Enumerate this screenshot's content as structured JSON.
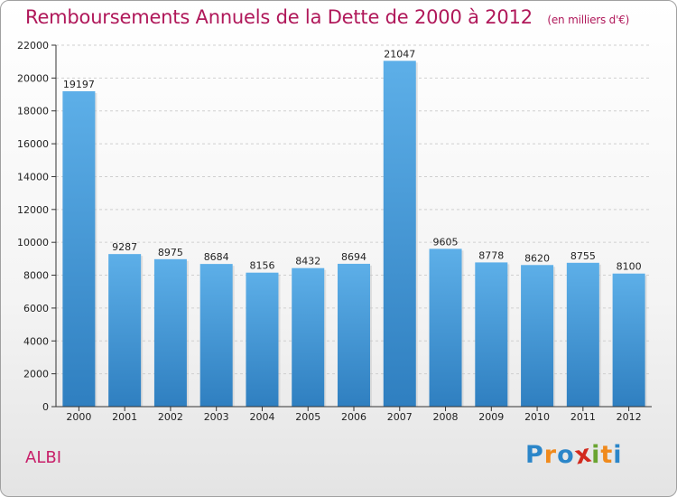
{
  "title": "Remboursements Annuels de la Dette de 2000 à 2012",
  "subtitle": "(en milliers d'€)",
  "location": "ALBI",
  "brand": {
    "text": "Proxiti",
    "letters": [
      {
        "ch": "P",
        "color": "#2b86c9"
      },
      {
        "ch": "r",
        "color": "#f08a1c"
      },
      {
        "ch": "o",
        "color": "#2b86c9"
      },
      {
        "ch": "x",
        "color": "#d22a1e"
      },
      {
        "ch": "i",
        "color": "#6aa431"
      },
      {
        "ch": "t",
        "color": "#f08a1c"
      },
      {
        "ch": "i",
        "color": "#2b86c9"
      }
    ]
  },
  "colors": {
    "bar_top": "#5dafe8",
    "bar_bottom": "#2f7fc0",
    "title": "#b0185a",
    "axis": "#333333",
    "grid": "#cfcfcf"
  },
  "chart_data": {
    "type": "bar",
    "categories": [
      "2000",
      "2001",
      "2002",
      "2003",
      "2004",
      "2005",
      "2006",
      "2007",
      "2008",
      "2009",
      "2010",
      "2011",
      "2012"
    ],
    "values": [
      19197,
      9287,
      8975,
      8684,
      8156,
      8432,
      8694,
      21047,
      9605,
      8778,
      8620,
      8755,
      8100
    ],
    "ylim": [
      0,
      22000
    ],
    "yticks": [
      0,
      2000,
      4000,
      6000,
      8000,
      10000,
      12000,
      14000,
      16000,
      18000,
      20000,
      22000
    ],
    "grid": true,
    "xlabel": "",
    "ylabel": ""
  }
}
